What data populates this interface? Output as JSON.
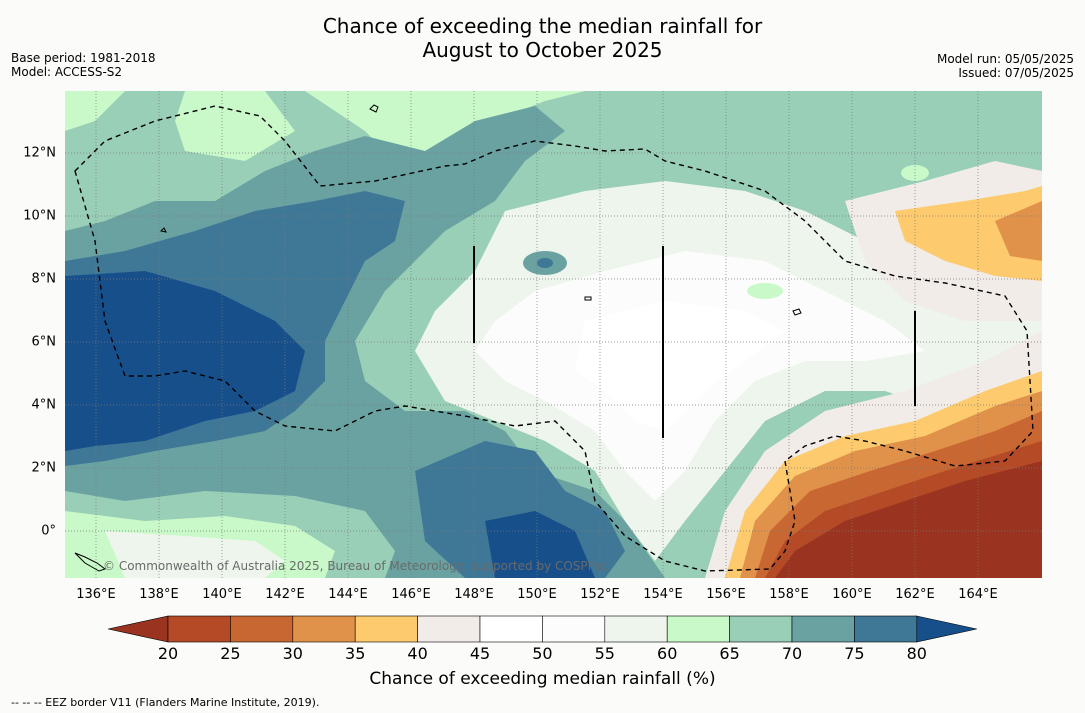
{
  "title_line1": "Chance of exceeding the median rainfall for",
  "title_line2": "August to October 2025",
  "base_period": "Base period: 1981-2018",
  "model": "Model: ACCESS-S2",
  "model_run": "Model run: 05/05/2025",
  "issued": "Issued: 07/05/2025",
  "copyright": "© Commonwealth of Australia 2025, Bureau of Meteorology, supported by COSPPac",
  "x_ticks": [
    "136°E",
    "138°E",
    "140°E",
    "142°E",
    "144°E",
    "146°E",
    "148°E",
    "150°E",
    "152°E",
    "154°E",
    "156°E",
    "158°E",
    "160°E",
    "162°E",
    "164°E"
  ],
  "y_ticks": [
    "12°N",
    "10°N",
    "8°N",
    "6°N",
    "4°N",
    "2°N",
    "0°"
  ],
  "colorbar": {
    "title": "Chance of exceeding median rainfall (%)",
    "labels": [
      "20",
      "25",
      "30",
      "35",
      "40",
      "45",
      "50",
      "55",
      "60",
      "65",
      "70",
      "75",
      "80"
    ],
    "colors": [
      "#9a3320",
      "#b44a26",
      "#c96732",
      "#e0924a",
      "#fdcb6e",
      "#f1ece7",
      "#ffffff",
      "#fbfcfb",
      "#eef5ec",
      "#c9f9c9",
      "#99ceb7",
      "#6aa2a2",
      "#3f7797",
      "#174f8a"
    ]
  },
  "footnote": "--  --  -- EEZ border V11 (Flanders Marine Institute, 2019)."
}
